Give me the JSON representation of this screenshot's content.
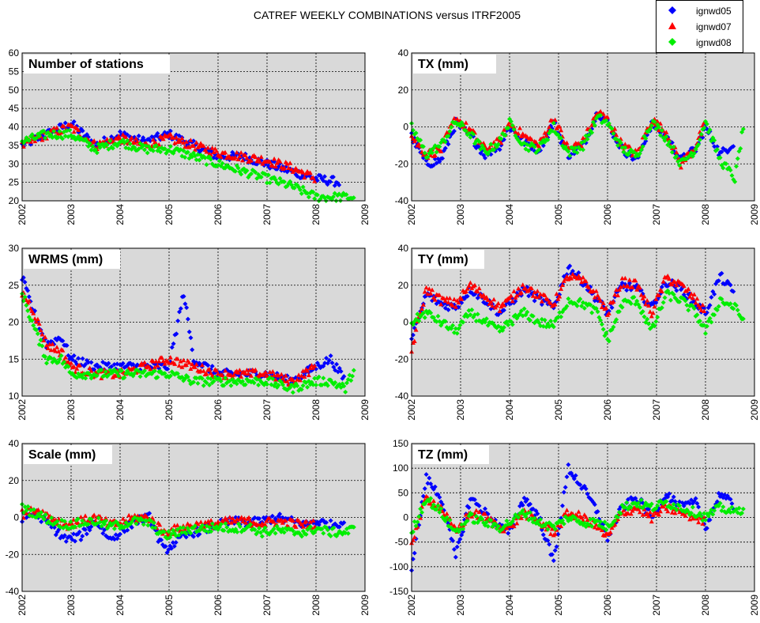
{
  "title": "CATREF WEEKLY COMBINATIONS versus ITRF2005",
  "legend": [
    {
      "name": "ignwd05",
      "color": "#0000ff",
      "marker": "diamond"
    },
    {
      "name": "ignwd07",
      "color": "#ff0000",
      "marker": "triangle"
    },
    {
      "name": "ignwd08",
      "color": "#00ee00",
      "marker": "diamond"
    }
  ],
  "colors": {
    "ignwd05": "#0000ff",
    "ignwd07": "#ff0000",
    "ignwd08": "#00ee00",
    "plot_bg": "#d9d9d9"
  },
  "chart_data": [
    {
      "type": "scatter",
      "title": "Number of stations",
      "xlim": [
        2002,
        2009
      ],
      "ylim": [
        20,
        60
      ],
      "xticks": [
        "2002",
        "2003",
        "2004",
        "2005",
        "2006",
        "2007",
        "2008",
        "2009"
      ],
      "yticks": [
        "20",
        "25",
        "30",
        "35",
        "40",
        "45",
        "50",
        "55",
        "60"
      ],
      "grid": true,
      "series": [
        {
          "name": "ignwd05",
          "x": [
            2002.0,
            2002.5,
            2003.0,
            2003.5,
            2004.0,
            2004.5,
            2005.0,
            2005.5,
            2006.0,
            2006.5,
            2007.0,
            2007.5,
            2008.0,
            2008.5
          ],
          "y": [
            35,
            38,
            41,
            35,
            38,
            36,
            38,
            35,
            32,
            32,
            30,
            28,
            26,
            25
          ]
        },
        {
          "name": "ignwd07",
          "x": [
            2002.0,
            2002.5,
            2003.0,
            2003.5,
            2004.0,
            2004.5,
            2005.0,
            2005.5,
            2006.0,
            2006.5,
            2007.0,
            2007.5,
            2008.0
          ],
          "y": [
            35,
            38,
            40,
            35,
            37,
            35,
            37,
            35,
            33,
            32,
            31,
            29,
            26
          ]
        },
        {
          "name": "ignwd08",
          "x": [
            2002.0,
            2002.5,
            2003.0,
            2003.5,
            2004.0,
            2004.5,
            2005.0,
            2005.5,
            2006.0,
            2006.5,
            2007.0,
            2007.5,
            2008.0,
            2008.5,
            2008.8
          ],
          "y": [
            36,
            38,
            38,
            34,
            36,
            34,
            34,
            32,
            30,
            28,
            26,
            24,
            21,
            21,
            21
          ]
        }
      ]
    },
    {
      "type": "scatter",
      "title": "TX (mm)",
      "xlim": [
        2002,
        2009
      ],
      "ylim": [
        -40,
        40
      ],
      "xticks": [
        "2002",
        "2003",
        "2004",
        "2005",
        "2006",
        "2007",
        "2008",
        "2009"
      ],
      "yticks": [
        "-40",
        "-20",
        "0",
        "20",
        "40"
      ],
      "grid": true,
      "series": [
        {
          "name": "ignwd05",
          "x": [
            2002.0,
            2002.3,
            2002.6,
            2002.9,
            2003.2,
            2003.5,
            2003.8,
            2004.0,
            2004.3,
            2004.6,
            2004.9,
            2005.2,
            2005.5,
            2005.8,
            2006.0,
            2006.3,
            2006.6,
            2006.9,
            2007.2,
            2007.5,
            2007.8,
            2008.0,
            2008.3,
            2008.6
          ],
          "y": [
            -5,
            -20,
            -18,
            2,
            -5,
            -15,
            -10,
            0,
            -8,
            -12,
            2,
            -15,
            -10,
            8,
            2,
            -12,
            -18,
            2,
            -5,
            -18,
            -12,
            0,
            -15,
            -8
          ]
        },
        {
          "name": "ignwd07",
          "x": [
            2002.0,
            2002.3,
            2002.6,
            2002.9,
            2003.2,
            2003.5,
            2003.8,
            2004.0,
            2004.3,
            2004.6,
            2004.9,
            2005.2,
            2005.5,
            2005.8,
            2006.0,
            2006.3,
            2006.6,
            2006.9,
            2007.2,
            2007.5,
            2007.8,
            2008.0
          ],
          "y": [
            -5,
            -15,
            -12,
            5,
            -2,
            -12,
            -8,
            2,
            -5,
            -10,
            5,
            -12,
            -8,
            8,
            4,
            -10,
            -15,
            4,
            -3,
            -20,
            -10,
            2
          ]
        },
        {
          "name": "ignwd08",
          "x": [
            2002.0,
            2002.3,
            2002.6,
            2002.9,
            2003.2,
            2003.5,
            2003.8,
            2004.0,
            2004.3,
            2004.6,
            2004.9,
            2005.2,
            2005.5,
            2005.8,
            2006.0,
            2006.3,
            2006.6,
            2006.9,
            2007.2,
            2007.5,
            2007.8,
            2008.0,
            2008.3,
            2008.6,
            2008.8
          ],
          "y": [
            0,
            -15,
            -10,
            3,
            -4,
            -14,
            -8,
            2,
            -10,
            -12,
            0,
            -14,
            -10,
            5,
            2,
            -12,
            -16,
            3,
            -6,
            -20,
            -12,
            3,
            -18,
            -28,
            4
          ]
        }
      ]
    },
    {
      "type": "scatter",
      "title": "WRMS (mm)",
      "xlim": [
        2002,
        2009
      ],
      "ylim": [
        10,
        30
      ],
      "xticks": [
        "2002",
        "2003",
        "2004",
        "2005",
        "2006",
        "2007",
        "2008",
        "2009"
      ],
      "yticks": [
        "10",
        "15",
        "20",
        "25",
        "30"
      ],
      "grid": true,
      "series": [
        {
          "name": "ignwd05",
          "x": [
            2002.0,
            2002.2,
            2002.5,
            2002.8,
            2003.0,
            2003.5,
            2004.0,
            2004.5,
            2005.0,
            2005.3,
            2005.5,
            2006.0,
            2006.5,
            2007.0,
            2007.5,
            2008.0,
            2008.3,
            2008.6
          ],
          "y": [
            26,
            22,
            17,
            18,
            15,
            14,
            14,
            14,
            14,
            24,
            15,
            13,
            13,
            13,
            12,
            14,
            15,
            12
          ]
        },
        {
          "name": "ignwd07",
          "x": [
            2002.0,
            2002.2,
            2002.5,
            2002.8,
            2003.0,
            2003.5,
            2004.0,
            2004.5,
            2005.0,
            2005.5,
            2006.0,
            2006.5,
            2007.0,
            2007.5,
            2008.0
          ],
          "y": [
            24,
            22,
            17,
            16,
            14,
            13,
            13,
            14,
            15,
            14,
            13,
            13,
            13,
            12,
            14
          ]
        },
        {
          "name": "ignwd08",
          "x": [
            2002.0,
            2002.2,
            2002.5,
            2002.8,
            2003.0,
            2003.5,
            2004.0,
            2004.5,
            2005.0,
            2005.5,
            2006.0,
            2006.5,
            2007.0,
            2007.5,
            2008.0,
            2008.3,
            2008.6,
            2008.8
          ],
          "y": [
            24,
            20,
            15,
            15,
            13,
            13,
            13,
            13,
            13,
            12,
            12,
            12,
            12,
            11,
            12,
            12,
            11,
            14
          ]
        }
      ]
    },
    {
      "type": "scatter",
      "title": "TY (mm)",
      "xlim": [
        2002,
        2009
      ],
      "ylim": [
        -40,
        40
      ],
      "xticks": [
        "2002",
        "2003",
        "2004",
        "2005",
        "2006",
        "2007",
        "2008",
        "2009"
      ],
      "yticks": [
        "-40",
        "-20",
        "0",
        "20",
        "40"
      ],
      "grid": true,
      "series": [
        {
          "name": "ignwd05",
          "x": [
            2002.0,
            2002.3,
            2002.6,
            2002.9,
            2003.2,
            2003.5,
            2003.8,
            2004.0,
            2004.3,
            2004.6,
            2004.9,
            2005.2,
            2005.5,
            2005.8,
            2006.0,
            2006.3,
            2006.6,
            2006.9,
            2007.2,
            2007.5,
            2007.8,
            2008.0,
            2008.3,
            2008.6
          ],
          "y": [
            -10,
            15,
            10,
            8,
            18,
            12,
            5,
            10,
            18,
            12,
            8,
            30,
            22,
            12,
            5,
            20,
            18,
            8,
            22,
            18,
            10,
            5,
            25,
            15
          ]
        },
        {
          "name": "ignwd07",
          "x": [
            2002.0,
            2002.3,
            2002.6,
            2002.9,
            2003.2,
            2003.5,
            2003.8,
            2004.0,
            2004.3,
            2004.6,
            2004.9,
            2005.2,
            2005.5,
            2005.8,
            2006.0,
            2006.3,
            2006.6,
            2006.9,
            2007.2,
            2007.5,
            2007.8,
            2008.0
          ],
          "y": [
            -15,
            18,
            12,
            10,
            20,
            14,
            8,
            12,
            20,
            14,
            10,
            25,
            22,
            14,
            5,
            22,
            20,
            5,
            24,
            20,
            12,
            5
          ]
        },
        {
          "name": "ignwd08",
          "x": [
            2002.0,
            2002.3,
            2002.6,
            2002.9,
            2003.2,
            2003.5,
            2003.8,
            2004.0,
            2004.3,
            2004.6,
            2004.9,
            2005.2,
            2005.5,
            2005.8,
            2006.0,
            2006.3,
            2006.6,
            2006.9,
            2007.2,
            2007.5,
            2007.8,
            2008.0,
            2008.3,
            2008.6,
            2008.8
          ],
          "y": [
            0,
            5,
            0,
            -5,
            5,
            0,
            -5,
            0,
            5,
            0,
            -2,
            12,
            10,
            5,
            -10,
            10,
            12,
            -5,
            15,
            12,
            5,
            -5,
            12,
            8,
            0
          ]
        }
      ]
    },
    {
      "type": "scatter",
      "title": "Scale (mm)",
      "xlim": [
        2002,
        2009
      ],
      "ylim": [
        -40,
        40
      ],
      "xticks": [
        "2002",
        "2003",
        "2004",
        "2005",
        "2006",
        "2007",
        "2008",
        "2009"
      ],
      "yticks": [
        "-40",
        "-20",
        "0",
        "20",
        "40"
      ],
      "grid": true,
      "series": [
        {
          "name": "ignwd05",
          "x": [
            2002.0,
            2002.3,
            2002.6,
            2002.9,
            2003.2,
            2003.5,
            2003.8,
            2004.0,
            2004.3,
            2004.6,
            2004.9,
            2005.2,
            2005.5,
            2005.8,
            2006.0,
            2006.3,
            2006.6,
            2006.9,
            2007.2,
            2007.5,
            2007.8,
            2008.0,
            2008.3,
            2008.6
          ],
          "y": [
            0,
            2,
            -5,
            -12,
            -10,
            -2,
            -12,
            -8,
            -2,
            0,
            -18,
            -12,
            -8,
            -6,
            -4,
            -2,
            -3,
            -2,
            0,
            -2,
            -4,
            -2,
            -4,
            -2
          ]
        },
        {
          "name": "ignwd07",
          "x": [
            2002.0,
            2002.3,
            2002.6,
            2002.9,
            2003.2,
            2003.5,
            2003.8,
            2004.0,
            2004.3,
            2004.6,
            2004.9,
            2005.2,
            2005.5,
            2005.8,
            2006.0,
            2006.3,
            2006.6,
            2006.9,
            2007.2,
            2007.5,
            2007.8,
            2008.0
          ],
          "y": [
            2,
            4,
            0,
            -4,
            -2,
            0,
            -4,
            -3,
            0,
            0,
            -8,
            -6,
            -4,
            -4,
            -3,
            -2,
            -2,
            -3,
            -2,
            -3,
            -4,
            -3
          ]
        },
        {
          "name": "ignwd08",
          "x": [
            2002.0,
            2002.3,
            2002.6,
            2002.9,
            2003.2,
            2003.5,
            2003.8,
            2004.0,
            2004.3,
            2004.6,
            2004.9,
            2005.2,
            2005.5,
            2005.8,
            2006.0,
            2006.3,
            2006.6,
            2006.9,
            2007.2,
            2007.5,
            2007.8,
            2008.0,
            2008.3,
            2008.6,
            2008.8
          ],
          "y": [
            5,
            2,
            -2,
            -4,
            -3,
            -2,
            -5,
            -4,
            -2,
            -3,
            -10,
            -8,
            -6,
            -6,
            -5,
            -6,
            -5,
            -8,
            -7,
            -8,
            -8,
            -6,
            -8,
            -8,
            -6
          ]
        }
      ]
    },
    {
      "type": "scatter",
      "title": "TZ (mm)",
      "xlim": [
        2002,
        2009
      ],
      "ylim": [
        -150,
        150
      ],
      "xticks": [
        "2002",
        "2003",
        "2004",
        "2005",
        "2006",
        "2007",
        "2008",
        "2009"
      ],
      "yticks": [
        "-150",
        "-100",
        "-50",
        "0",
        "50",
        "100",
        "150"
      ],
      "grid": true,
      "series": [
        {
          "name": "ignwd05",
          "x": [
            2002.0,
            2002.3,
            2002.6,
            2002.9,
            2003.2,
            2003.5,
            2003.8,
            2004.0,
            2004.3,
            2004.6,
            2004.9,
            2005.2,
            2005.5,
            2005.8,
            2006.0,
            2006.3,
            2006.6,
            2006.9,
            2007.2,
            2007.5,
            2007.8,
            2008.0,
            2008.3,
            2008.6
          ],
          "y": [
            -100,
            80,
            40,
            -80,
            40,
            10,
            -20,
            -30,
            40,
            0,
            -90,
            100,
            60,
            10,
            -40,
            20,
            40,
            0,
            50,
            20,
            30,
            -20,
            50,
            20
          ]
        },
        {
          "name": "ignwd07",
          "x": [
            2002.0,
            2002.3,
            2002.6,
            2002.9,
            2003.2,
            2003.5,
            2003.8,
            2004.0,
            2004.3,
            2004.6,
            2004.9,
            2005.2,
            2005.5,
            2005.8,
            2006.0,
            2006.3,
            2006.6,
            2006.9,
            2007.2,
            2007.5,
            2007.8,
            2008.0
          ],
          "y": [
            -50,
            40,
            20,
            -30,
            10,
            0,
            -20,
            -20,
            10,
            -10,
            -30,
            10,
            0,
            -20,
            -40,
            10,
            20,
            0,
            20,
            10,
            0,
            -10
          ]
        },
        {
          "name": "ignwd08",
          "x": [
            2002.0,
            2002.3,
            2002.6,
            2002.9,
            2003.2,
            2003.5,
            2003.8,
            2004.0,
            2004.3,
            2004.6,
            2004.9,
            2005.2,
            2005.5,
            2005.8,
            2006.0,
            2006.3,
            2006.6,
            2006.9,
            2007.2,
            2007.5,
            2007.8,
            2008.0,
            2008.3,
            2008.6,
            2008.8
          ],
          "y": [
            -30,
            40,
            10,
            -30,
            0,
            -10,
            -20,
            -10,
            10,
            -10,
            -20,
            0,
            -10,
            -10,
            -20,
            20,
            30,
            20,
            30,
            20,
            10,
            0,
            20,
            10,
            20
          ]
        }
      ]
    }
  ]
}
